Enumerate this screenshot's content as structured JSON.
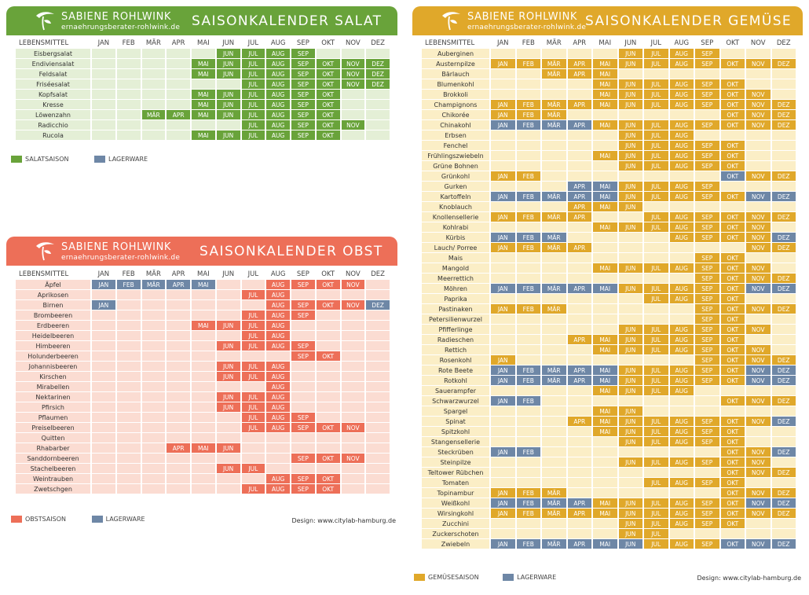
{
  "brand": "SABIENE ROHLWINK",
  "website": "ernaehrungsberater-rohlwink.de",
  "design_credit": "Design: www.citylab-hamburg.de",
  "column_header_food": "LEBENSMITTEL",
  "months": [
    "JAN",
    "FEB",
    "MÄR",
    "APR",
    "MAI",
    "JUN",
    "JUL",
    "AUG",
    "SEP",
    "OKT",
    "NOV",
    "DEZ"
  ],
  "colors": {
    "lager": "#6e87a6",
    "salat": {
      "accent": "#69a33a",
      "light": "#e4efd6"
    },
    "obst": {
      "accent": "#ed6f58",
      "light": "#fbdcd2"
    },
    "gemuese": {
      "accent": "#e0a82a",
      "light": "#fbeec6"
    }
  },
  "salat": {
    "title": "SAISONKALENDER SALAT",
    "legend_season": "SALATSAISON",
    "legend_storage": "LAGERWARE",
    "rows": [
      {
        "name": "Eisbergsalat",
        "season": "6-9",
        "storage": ""
      },
      {
        "name": "Endiviensalat",
        "season": "5-12",
        "storage": ""
      },
      {
        "name": "Feldsalat",
        "season": "5-12",
        "storage": ""
      },
      {
        "name": "Friséesalat",
        "season": "7-12",
        "storage": ""
      },
      {
        "name": "Kopfsalat",
        "season": "5-10",
        "storage": ""
      },
      {
        "name": "Kresse",
        "season": "5-10",
        "storage": ""
      },
      {
        "name": "Löwenzahn",
        "season": "3-10",
        "storage": ""
      },
      {
        "name": "Radicchio",
        "season": "7-11",
        "storage": ""
      },
      {
        "name": "Rucola",
        "season": "5-10",
        "storage": ""
      }
    ]
  },
  "obst": {
    "title": "SAISONKALENDER OBST",
    "legend_season": "OBSTSAISON",
    "legend_storage": "LAGERWARE",
    "rows": [
      {
        "name": "Äpfel",
        "season": "8-11",
        "storage": "1-5"
      },
      {
        "name": "Aprikosen",
        "season": "7-8",
        "storage": ""
      },
      {
        "name": "Birnen",
        "season": "8-11",
        "storage": "1,12"
      },
      {
        "name": "Brombeeren",
        "season": "7-9",
        "storage": ""
      },
      {
        "name": "Erdbeeren",
        "season": "5-8",
        "storage": ""
      },
      {
        "name": "Heidelbeeren",
        "season": "7-8",
        "storage": ""
      },
      {
        "name": "Himbeeren",
        "season": "6-9",
        "storage": ""
      },
      {
        "name": "Holunderbeeren",
        "season": "9-10",
        "storage": ""
      },
      {
        "name": "Johannisbeeren",
        "season": "6-8",
        "storage": ""
      },
      {
        "name": "Kirschen",
        "season": "6-8",
        "storage": ""
      },
      {
        "name": "Mirabellen",
        "season": "8",
        "storage": ""
      },
      {
        "name": "Nektarinen",
        "season": "6-8",
        "storage": ""
      },
      {
        "name": "Pfirsich",
        "season": "6-8",
        "storage": ""
      },
      {
        "name": "Pflaumen",
        "season": "7-9",
        "storage": ""
      },
      {
        "name": "Preiselbeeren",
        "season": "7-11",
        "storage": ""
      },
      {
        "name": "Quitten",
        "season": "",
        "storage": ""
      },
      {
        "name": "Rhabarber",
        "season": "4-6",
        "storage": ""
      },
      {
        "name": "Sanddornbeeren",
        "season": "9-11",
        "storage": ""
      },
      {
        "name": "Stachelbeeren",
        "season": "6-7",
        "storage": ""
      },
      {
        "name": "Weintrauben",
        "season": "8-10",
        "storage": ""
      },
      {
        "name": "Zwetschgen",
        "season": "7-10",
        "storage": ""
      }
    ]
  },
  "gemuese": {
    "title": "SAISONKALENDER GEMÜSE",
    "legend_season": "GEMÜSESAISON",
    "legend_storage": "LAGERWARE",
    "rows": [
      {
        "name": "Auberginen",
        "season": "6-9",
        "storage": ""
      },
      {
        "name": "Austernpilze",
        "season": "1-12",
        "storage": ""
      },
      {
        "name": "Bärlauch",
        "season": "3-5",
        "storage": ""
      },
      {
        "name": "Blumenkohl",
        "season": "5-10",
        "storage": ""
      },
      {
        "name": "Brokkoli",
        "season": "5-11",
        "storage": ""
      },
      {
        "name": "Champignons",
        "season": "1-12",
        "storage": ""
      },
      {
        "name": "Chikorée",
        "season": "1-3,10-12",
        "storage": ""
      },
      {
        "name": "Chinakohl",
        "season": "5-12",
        "storage": "1-4"
      },
      {
        "name": "Erbsen",
        "season": "6-8",
        "storage": ""
      },
      {
        "name": "Fenchel",
        "season": "6-10",
        "storage": ""
      },
      {
        "name": "Frühlingszwiebeln",
        "season": "5-10",
        "storage": ""
      },
      {
        "name": "Grüne Bohnen",
        "season": "6-10",
        "storage": ""
      },
      {
        "name": "Grünkohl",
        "season": "1-2,11-12",
        "storage": "10"
      },
      {
        "name": "Gurken",
        "season": "6-9",
        "storage": "4-5"
      },
      {
        "name": "Kartoffeln",
        "season": "6-10",
        "storage": "1-5,11-12"
      },
      {
        "name": "Knoblauch",
        "season": "4-6",
        "storage": ""
      },
      {
        "name": "Knollensellerie",
        "season": "1-4,7-12",
        "storage": ""
      },
      {
        "name": "Kohlrabi",
        "season": "5-11",
        "storage": ""
      },
      {
        "name": "Kürbis",
        "season": "8-11",
        "storage": "1-3,12"
      },
      {
        "name": "Lauch/ Porree",
        "season": "1-4,11-12",
        "storage": ""
      },
      {
        "name": "Mais",
        "season": "9-10",
        "storage": ""
      },
      {
        "name": "Mangold",
        "season": "5-11",
        "storage": ""
      },
      {
        "name": "Meerrettich",
        "season": "9-12",
        "storage": ""
      },
      {
        "name": "Möhren",
        "season": "6-10",
        "storage": "1-5,11-12"
      },
      {
        "name": "Paprika",
        "season": "7-10",
        "storage": ""
      },
      {
        "name": "Pastinaken",
        "season": "1-3,9-12",
        "storage": ""
      },
      {
        "name": "Petersilienwurzel",
        "season": "9-10",
        "storage": ""
      },
      {
        "name": "Pfifferlinge",
        "season": "6-11",
        "storage": ""
      },
      {
        "name": "Radieschen",
        "season": "4-10",
        "storage": ""
      },
      {
        "name": "Rettich",
        "season": "5-11",
        "storage": ""
      },
      {
        "name": "Rosenkohl",
        "season": "1,9-12",
        "storage": ""
      },
      {
        "name": "Rote Beete",
        "season": "6-10",
        "storage": "1-5,11-12"
      },
      {
        "name": "Rotkohl",
        "season": "6-10",
        "storage": "1-5,11-12"
      },
      {
        "name": "Sauerampfer",
        "season": "5-8",
        "storage": ""
      },
      {
        "name": "Schwarzwurzel",
        "season": "10-12",
        "storage": "1-2"
      },
      {
        "name": "Spargel",
        "season": "5-6",
        "storage": ""
      },
      {
        "name": "Spinat",
        "season": "4-11",
        "storage": "12"
      },
      {
        "name": "Spitzkohl",
        "season": "5-10",
        "storage": ""
      },
      {
        "name": "Stangensellerie",
        "season": "6-10",
        "storage": ""
      },
      {
        "name": "Steckrüben",
        "season": "10-11",
        "storage": "1-2,12"
      },
      {
        "name": "Steinpilze",
        "season": "6-11",
        "storage": ""
      },
      {
        "name": "Teltower Rübchen",
        "season": "10-12",
        "storage": ""
      },
      {
        "name": "Tomaten",
        "season": "7-10",
        "storage": ""
      },
      {
        "name": "Topinambur",
        "season": "1-3,10-12",
        "storage": ""
      },
      {
        "name": "Weißkohl",
        "season": "5-10",
        "storage": "1-4,11-12"
      },
      {
        "name": "Wirsingkohl",
        "season": "1-12",
        "storage": ""
      },
      {
        "name": "Zucchini",
        "season": "6-10",
        "storage": ""
      },
      {
        "name": "Zuckerschoten",
        "season": "6-7",
        "storage": ""
      },
      {
        "name": "Zwiebeln",
        "season": "7-9",
        "storage": "1-6,10-12"
      }
    ]
  }
}
